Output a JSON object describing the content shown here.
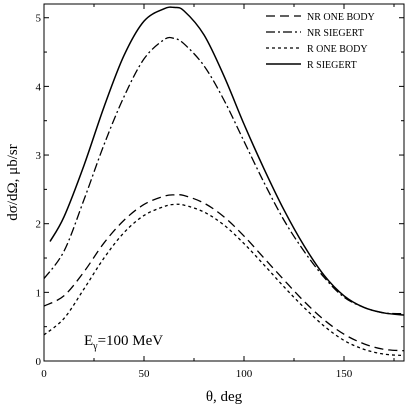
{
  "chart_data": {
    "type": "line",
    "xlabel": "θ, deg",
    "ylabel": "dσ/dΩ, μb/sr",
    "xlim": [
      0,
      180
    ],
    "ylim": [
      0,
      5.2
    ],
    "xticks": [
      0,
      50,
      100,
      150
    ],
    "yticks": [
      0,
      1,
      2,
      3,
      4,
      5
    ],
    "grid": false,
    "legend_position": "top-right",
    "annotation": {
      "prefix": "E",
      "subscript": "γ",
      "suffix": "=100 MeV"
    },
    "series": [
      {
        "name": "NR ONE BODY",
        "dash": "long-dash",
        "x": [
          0,
          10,
          20,
          30,
          40,
          50,
          60,
          65,
          70,
          80,
          90,
          100,
          110,
          120,
          130,
          140,
          150,
          160,
          170,
          180
        ],
        "y": [
          0.8,
          0.95,
          1.3,
          1.72,
          2.05,
          2.28,
          2.4,
          2.42,
          2.41,
          2.3,
          2.1,
          1.82,
          1.5,
          1.18,
          0.87,
          0.6,
          0.39,
          0.25,
          0.17,
          0.15
        ]
      },
      {
        "name": "NR SIEGERT",
        "dash": "dash-dot",
        "x": [
          0,
          10,
          20,
          30,
          40,
          50,
          60,
          65,
          70,
          80,
          90,
          100,
          110,
          120,
          130,
          140,
          150,
          160,
          170,
          180
        ],
        "y": [
          1.2,
          1.6,
          2.35,
          3.15,
          3.85,
          4.4,
          4.68,
          4.7,
          4.62,
          4.3,
          3.8,
          3.2,
          2.6,
          2.05,
          1.6,
          1.22,
          0.93,
          0.78,
          0.7,
          0.69
        ]
      },
      {
        "name": "R ONE BODY",
        "dash": "short-dash",
        "x": [
          0,
          10,
          20,
          30,
          40,
          50,
          60,
          65,
          70,
          80,
          90,
          100,
          110,
          120,
          130,
          140,
          150,
          160,
          170,
          180
        ],
        "y": [
          0.38,
          0.62,
          1.05,
          1.5,
          1.87,
          2.12,
          2.25,
          2.28,
          2.27,
          2.17,
          1.98,
          1.71,
          1.4,
          1.08,
          0.78,
          0.51,
          0.3,
          0.17,
          0.1,
          0.08
        ]
      },
      {
        "name": "R SIEGERT",
        "dash": "solid",
        "x": [
          3,
          10,
          20,
          30,
          40,
          50,
          60,
          65,
          70,
          80,
          90,
          100,
          110,
          120,
          130,
          140,
          150,
          160,
          170,
          180
        ],
        "y": [
          1.74,
          2.1,
          2.85,
          3.7,
          4.45,
          4.95,
          5.13,
          5.15,
          5.1,
          4.75,
          4.15,
          3.45,
          2.8,
          2.2,
          1.68,
          1.25,
          0.95,
          0.78,
          0.7,
          0.67
        ]
      }
    ]
  }
}
